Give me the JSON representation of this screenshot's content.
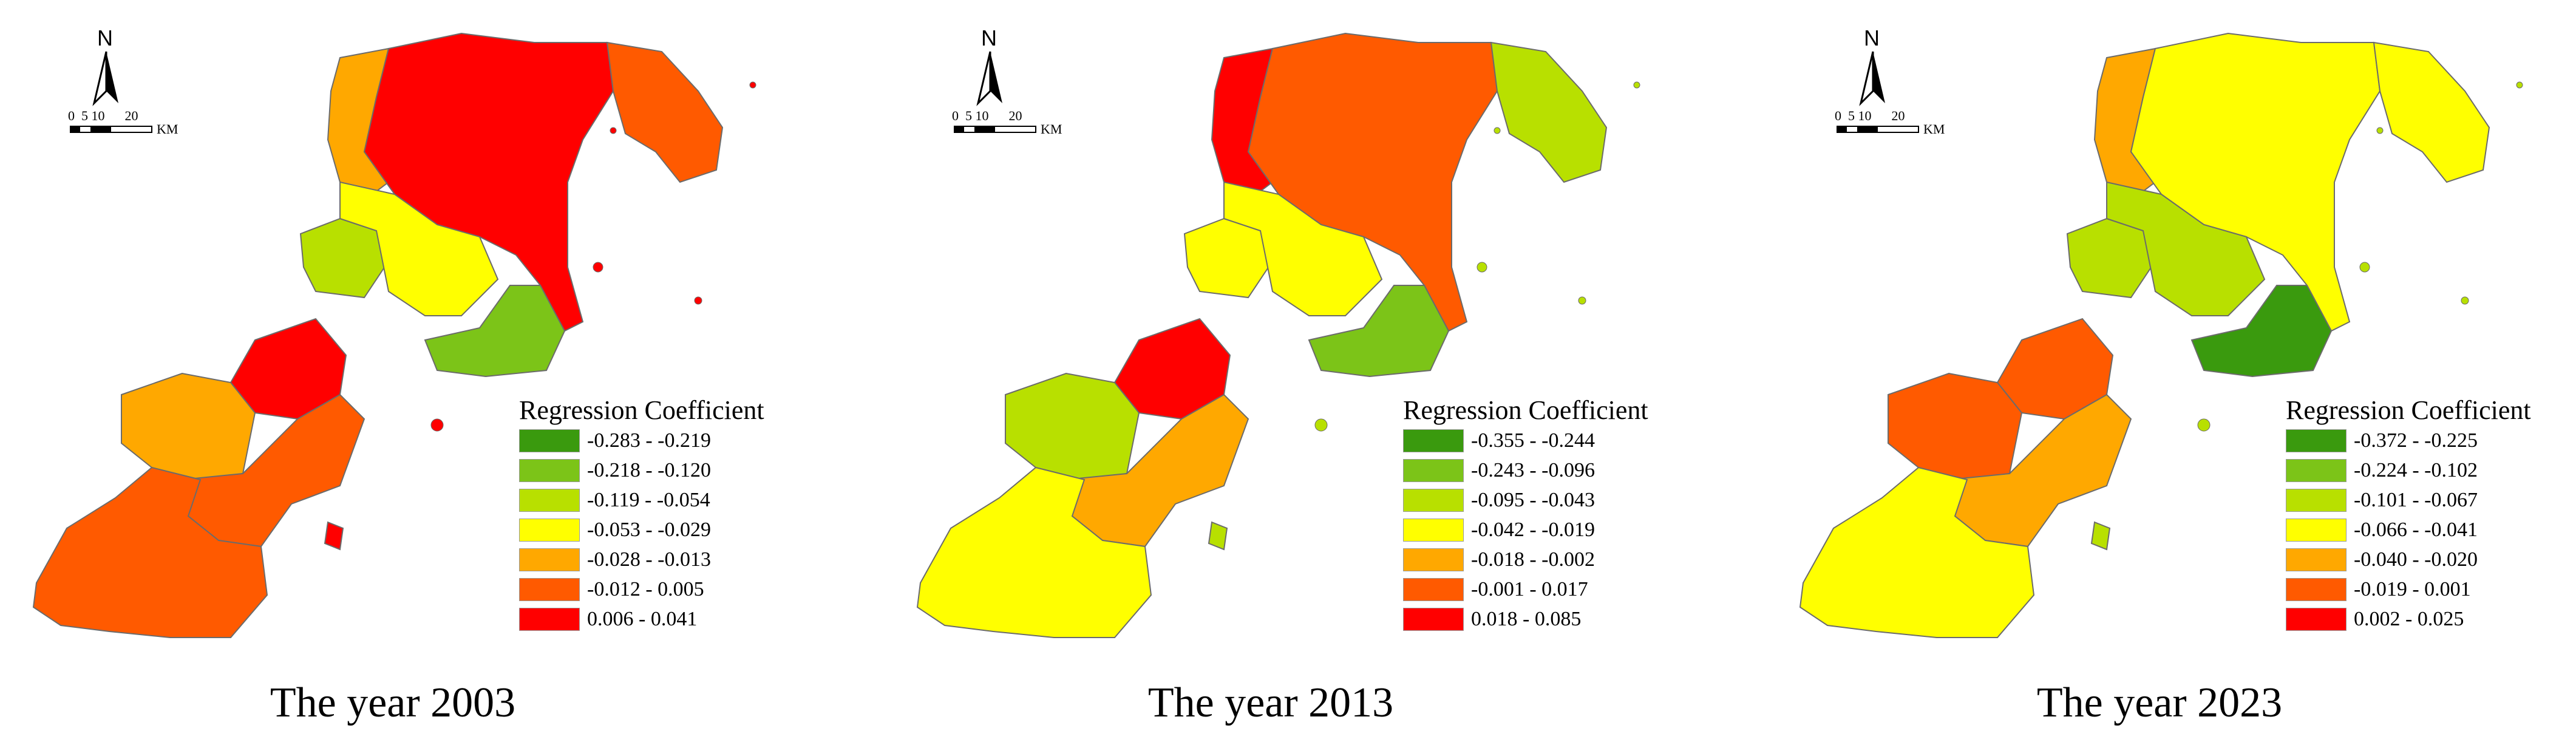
{
  "north_label": "N",
  "scale_labels": [
    "0",
    "5",
    "10",
    "20"
  ],
  "scale_unit": "KM",
  "legend_title": "Regression Coefficient",
  "class_colors": [
    "#3a9a0e",
    "#7cc418",
    "#b8e000",
    "#ffff00",
    "#ffa800",
    "#ff5a00",
    "#ff0000"
  ],
  "panels": [
    {
      "caption": "The year 2003",
      "legend": [
        "-0.283 - -0.219",
        "-0.218 - -0.120",
        "-0.119 - -0.054",
        "-0.053 - -0.029",
        "-0.028 - -0.013",
        "-0.012 - 0.005",
        "0.006 - 0.041"
      ]
    },
    {
      "caption": "The year 2013",
      "legend": [
        "-0.355 - -0.244",
        "-0.243 - -0.096",
        "-0.095 - -0.043",
        "-0.042 - -0.019",
        "-0.018 - -0.002",
        "-0.001 - 0.017",
        "0.018 - 0.085"
      ]
    },
    {
      "caption": "The year 2023",
      "legend": [
        "-0.372 -  -0.225",
        "-0.224 - -0.102",
        "-0.101 - -0.067",
        "-0.066 - -0.041",
        "-0.040 - -0.020",
        "-0.019 - 0.001",
        "0.002 - 0.025"
      ]
    }
  ],
  "map_regions": {
    "north_west": [
      4,
      6,
      4
    ],
    "north_core": [
      6,
      5,
      3
    ],
    "north_east": [
      5,
      2,
      3
    ],
    "middle_west": [
      2,
      3,
      2
    ],
    "middle_center": [
      3,
      3,
      2
    ],
    "urban_east": [
      1,
      1,
      0
    ],
    "south_north": [
      6,
      6,
      5
    ],
    "south_west": [
      4,
      2,
      5
    ],
    "south_center": [
      5,
      4,
      4
    ],
    "south_south": [
      5,
      3,
      3
    ],
    "islands": [
      6,
      2,
      2
    ]
  }
}
